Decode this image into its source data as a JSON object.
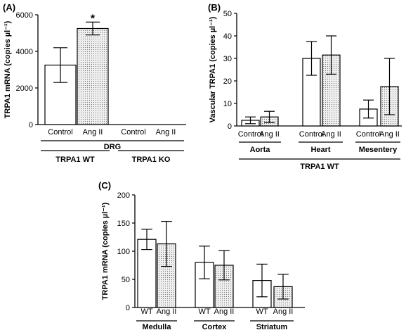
{
  "colors": {
    "ink": "#000000",
    "control_fill": "#ffffff",
    "treated_fill": "#e6e6e6",
    "dot_pattern": "#777777"
  },
  "chart_data": [
    {
      "id": "A",
      "type": "bar",
      "panel_label": "(A)",
      "ylabel": "TRPA1 mRNA (copies µl⁻¹)",
      "ylim": [
        0,
        6000
      ],
      "yticks": [
        0,
        2000,
        4000,
        6000
      ],
      "yticklabels": [
        "0",
        "2000",
        "4000",
        "6000"
      ],
      "categories": [
        "Control",
        "Ang II",
        "Control",
        "Ang II"
      ],
      "values": [
        3250,
        5250,
        0,
        0
      ],
      "errors": [
        950,
        350,
        0,
        0
      ],
      "fills": [
        "open",
        "dotted",
        "open",
        "dotted"
      ],
      "annotations": [
        {
          "category_index": 1,
          "text": "*"
        }
      ],
      "group_lines": [
        {
          "label": "DRG",
          "span": [
            0,
            3
          ]
        },
        {
          "label": "TRPA1 WT",
          "span": [
            0,
            1
          ]
        },
        {
          "label": "TRPA1 KO",
          "span": [
            2,
            3
          ]
        }
      ]
    },
    {
      "id": "B",
      "type": "bar",
      "panel_label": "(B)",
      "ylabel": "Vascular TRPA1 (copies µl⁻¹)",
      "ylim": [
        0,
        50
      ],
      "yticks": [
        0,
        10,
        20,
        30,
        40,
        50
      ],
      "yticklabels": [
        "0",
        "10",
        "20",
        "30",
        "40",
        "50"
      ],
      "categories": [
        "Control",
        "Ang II",
        "Control",
        "Ang II",
        "Control",
        "Ang II"
      ],
      "values": [
        2.5,
        4,
        30,
        31.5,
        7.5,
        17.5
      ],
      "errors": [
        1.5,
        2.5,
        7.5,
        8.5,
        4,
        12.5
      ],
      "fills": [
        "open",
        "dotted",
        "open",
        "dotted",
        "open",
        "dotted"
      ],
      "group_lines": [
        {
          "label": "Aorta",
          "span": [
            0,
            1
          ]
        },
        {
          "label": "Heart",
          "span": [
            2,
            3
          ]
        },
        {
          "label": "Mesentery",
          "span": [
            4,
            5
          ]
        },
        {
          "label": "TRPA1 WT",
          "span": [
            0,
            5
          ]
        }
      ]
    },
    {
      "id": "C",
      "type": "bar",
      "panel_label": "(C)",
      "ylabel": "TRPA1 mRNA (copies µl⁻¹)",
      "ylim": [
        0,
        200
      ],
      "yticks": [
        0,
        50,
        100,
        150,
        200
      ],
      "yticklabels": [
        "0",
        "50",
        "100",
        "150",
        "200"
      ],
      "categories": [
        "WT",
        "Ang II",
        "WT",
        "Ang II",
        "WT",
        "Ang II"
      ],
      "values": [
        121,
        113,
        80,
        75,
        48,
        37
      ],
      "errors": [
        18,
        40,
        29,
        26,
        29,
        22
      ],
      "fills": [
        "open",
        "dotted",
        "open",
        "dotted",
        "open",
        "dotted"
      ],
      "group_lines": [
        {
          "label": "Medulla",
          "span": [
            0,
            1
          ]
        },
        {
          "label": "Cortex",
          "span": [
            2,
            3
          ]
        },
        {
          "label": "Striatum",
          "span": [
            4,
            5
          ]
        }
      ]
    }
  ]
}
